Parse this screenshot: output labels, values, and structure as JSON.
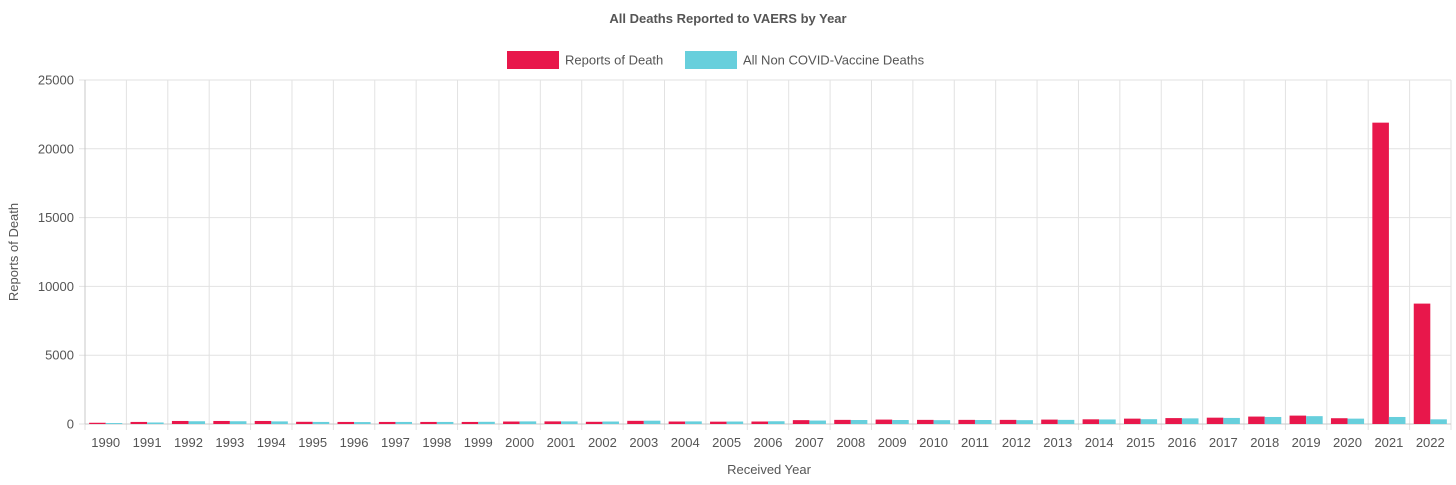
{
  "chart_data": {
    "type": "bar",
    "title": "All Deaths Reported to VAERS by Year",
    "xlabel": "Received Year",
    "ylabel": "Reports of Death",
    "ylim": [
      0,
      25000
    ],
    "yticks": [
      0,
      5000,
      10000,
      15000,
      20000,
      25000
    ],
    "grid": true,
    "legend_position": "top",
    "categories": [
      "1990",
      "1991",
      "1992",
      "1993",
      "1994",
      "1995",
      "1996",
      "1997",
      "1998",
      "1999",
      "2000",
      "2001",
      "2002",
      "2003",
      "2004",
      "2005",
      "2006",
      "2007",
      "2008",
      "2009",
      "2010",
      "2011",
      "2012",
      "2013",
      "2014",
      "2015",
      "2016",
      "2017",
      "2018",
      "2019",
      "2020",
      "2021",
      "2022"
    ],
    "series": [
      {
        "name": "Reports of Death",
        "color": "#e8174b",
        "values": [
          90,
          150,
          220,
          220,
          220,
          160,
          150,
          150,
          150,
          150,
          180,
          190,
          160,
          230,
          180,
          170,
          180,
          280,
          300,
          320,
          300,
          300,
          300,
          320,
          340,
          390,
          430,
          460,
          540,
          610,
          420,
          21900,
          8750
        ]
      },
      {
        "name": "All Non COVID-Vaccine Deaths",
        "color": "#67cfdc",
        "values": [
          70,
          110,
          200,
          200,
          190,
          150,
          140,
          150,
          150,
          160,
          190,
          190,
          180,
          240,
          190,
          180,
          200,
          250,
          290,
          290,
          280,
          290,
          280,
          300,
          330,
          350,
          410,
          440,
          510,
          570,
          390,
          510,
          340
        ]
      }
    ]
  }
}
